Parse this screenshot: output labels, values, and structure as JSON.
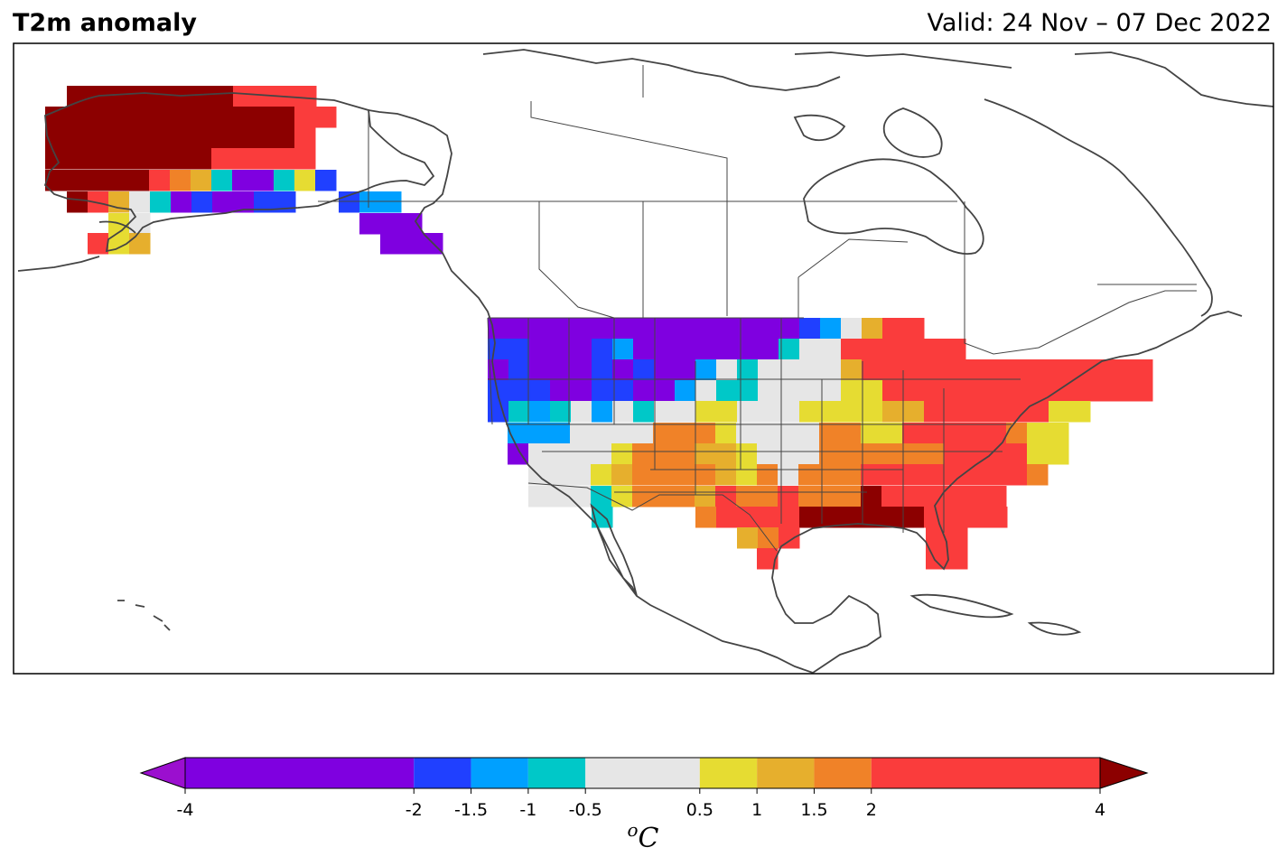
{
  "title": "T2m anomaly",
  "valid": "Valid: 24 Nov – 07 Dec 2022",
  "colorbar": {
    "unit_sup": "o",
    "unit": "C",
    "levels": [
      {
        "label": "-4",
        "value": -4
      },
      {
        "label": "-2",
        "value": -2
      },
      {
        "label": "-1.5",
        "value": -1.5
      },
      {
        "label": "-1",
        "value": -1
      },
      {
        "label": "-0.5",
        "value": -0.5
      },
      {
        "label": "0.5",
        "value": 0.5
      },
      {
        "label": "1",
        "value": 1
      },
      {
        "label": "1.5",
        "value": 1.5
      },
      {
        "label": "2",
        "value": 2
      },
      {
        "label": "4",
        "value": 4
      }
    ],
    "colors": {
      "below": "#9b0fcf",
      "-4_-2": "#7f00e0",
      "-2_-1.5": "#2040ff",
      "-1.5_-1": "#00a0ff",
      "-1_-0.5": "#00c8c8",
      "-0.5_0.5": "#e6e6e6",
      "0.5_1": "#e6dc32",
      "1_1.5": "#e6af2d",
      "1.5_2": "#f08228",
      "2_4": "#fa3c3c",
      "above": "#8c0000"
    }
  },
  "map": {
    "region": "North America",
    "legend_placement": "bottom",
    "anomaly_cells": {
      "alaska": [
        {
          "lon": -165,
          "lat": 70,
          "class": "above"
        },
        {
          "lon": -155,
          "lat": 70,
          "class": "above"
        },
        {
          "lon": -145,
          "lat": 68,
          "class": "2_4"
        },
        {
          "lon": -160,
          "lat": 65,
          "class": "above"
        },
        {
          "lon": -150,
          "lat": 65,
          "class": "above"
        },
        {
          "lon": -150,
          "lat": 62,
          "class": "-4_-2"
        },
        {
          "lon": -145,
          "lat": 62,
          "class": "-1_-0.5"
        },
        {
          "lon": -140,
          "lat": 61,
          "class": "0.5_1"
        },
        {
          "lon": -160,
          "lat": 60,
          "class": "-0.5_0.5"
        },
        {
          "lon": -162,
          "lat": 58,
          "class": "0.5_1"
        },
        {
          "lon": -135,
          "lat": 58,
          "class": "-1.5_-1"
        },
        {
          "lon": -132,
          "lat": 56,
          "class": "-4_-2"
        }
      ],
      "conus": [
        {
          "region": "Pacific Northwest",
          "class": "-2_-1.5"
        },
        {
          "region": "Northern Rockies",
          "class": "-4_-2"
        },
        {
          "region": "Northern Plains",
          "class": "-4_-2"
        },
        {
          "region": "California",
          "class": "-0.5_0.5"
        },
        {
          "region": "Southwest",
          "class": "0.5_1"
        },
        {
          "region": "Central Plains",
          "class": "-0.5_0.5"
        },
        {
          "region": "Texas",
          "class": "2_4"
        },
        {
          "region": "Gulf Coast",
          "class": "above"
        },
        {
          "region": "Southeast",
          "class": "2_4"
        },
        {
          "region": "Great Lakes",
          "class": "2_4"
        },
        {
          "region": "Mid-Atlantic",
          "class": "0.5_1"
        },
        {
          "region": "Northeast",
          "class": "2_4"
        }
      ]
    }
  }
}
